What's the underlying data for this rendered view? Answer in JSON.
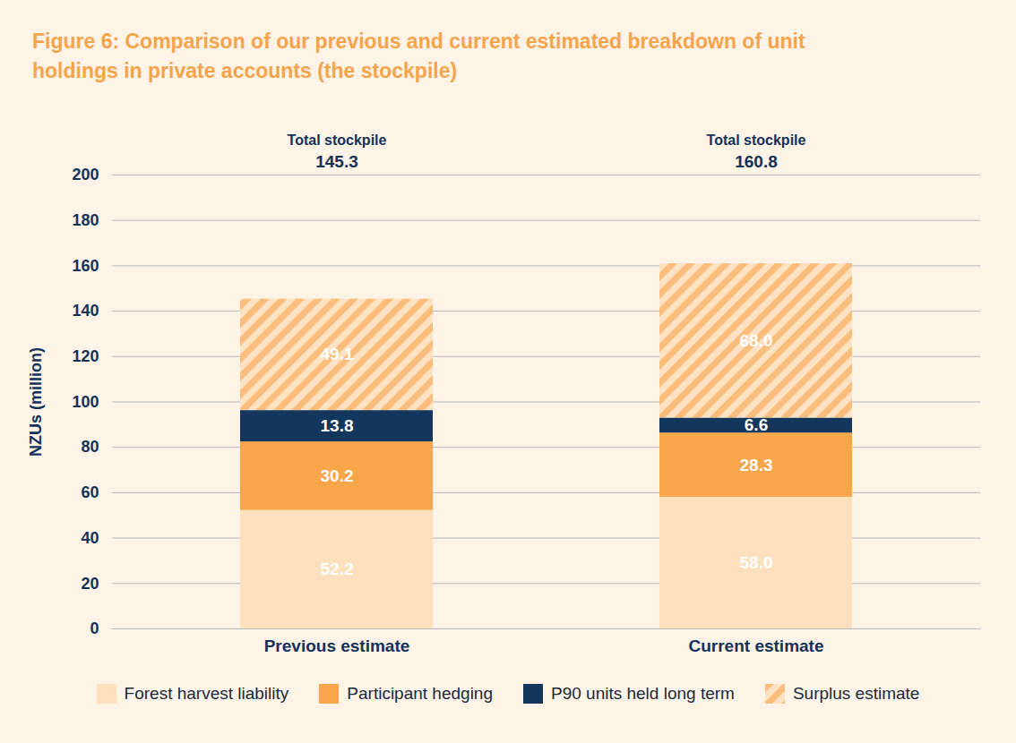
{
  "chart_data": {
    "type": "bar",
    "title": "Figure 6: Comparison of our previous and current estimated breakdown of unit holdings in private accounts (the stockpile)",
    "y_label": "NZUs (million)",
    "categories": [
      "Previous estimate",
      "Current estimate"
    ],
    "series": [
      {
        "name": "Forest harvest liability",
        "color": "#fde0bd",
        "values": [
          52.2,
          58.0
        ],
        "value_labels": [
          "52.2",
          "58.0"
        ]
      },
      {
        "name": "Participant hedging",
        "color": "#f9a54a",
        "values": [
          30.2,
          28.3
        ]
      },
      {
        "name": "P90 units held long term",
        "color": "#13365c",
        "values": [
          13.8,
          6.6
        ]
      },
      {
        "name": "Surplus estimate",
        "color": "#fbbd7c",
        "values": [
          49.1,
          68.0
        ],
        "value_labels": [
          "49.1",
          "68.0"
        ]
      }
    ],
    "total_label": "Total stockpile",
    "totals": [
      145.3,
      160.8
    ],
    "ylim": [
      0,
      200
    ],
    "yticks": [
      0,
      20,
      40,
      60,
      80,
      100,
      120,
      140,
      160,
      180,
      200
    ],
    "stacked": true,
    "data_labels": true,
    "grid": true,
    "legend": "bottom"
  }
}
